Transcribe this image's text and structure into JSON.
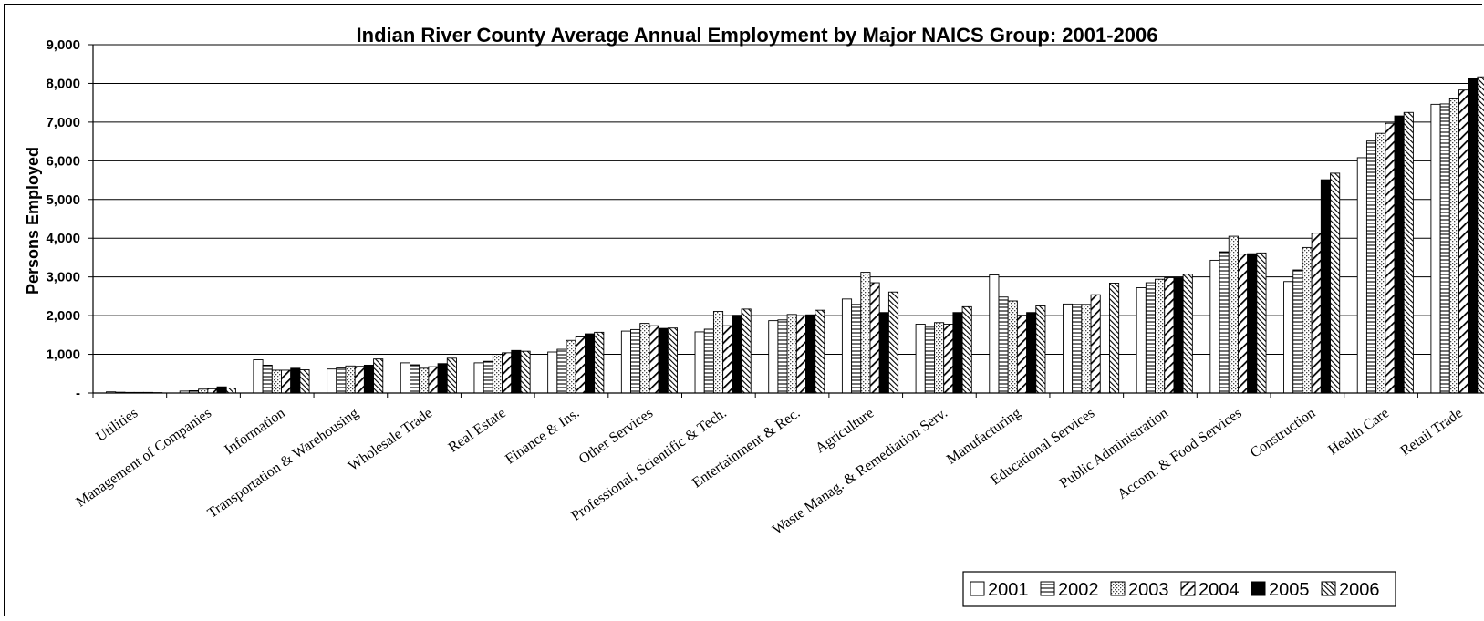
{
  "chart_data": {
    "type": "bar",
    "title": "Indian River County Average Annual Employment by Major NAICS Group: 2001-2006",
    "xlabel": "",
    "ylabel": "Persons Employed",
    "ylim": [
      0,
      9000
    ],
    "yticks": [
      0,
      1000,
      2000,
      3000,
      4000,
      5000,
      6000,
      7000,
      8000,
      9000
    ],
    "ytick_labels": [
      "-",
      "1,000",
      "2,000",
      "3,000",
      "4,000",
      "5,000",
      "6,000",
      "7,000",
      "8,000",
      "9,000"
    ],
    "grid": true,
    "legend_position": "bottom-right",
    "categories": [
      "Utilities",
      "Management of Companies",
      "Information",
      "Transportation & Warehousing",
      "Wholesale Trade",
      "Real Estate",
      "Finance & Ins.",
      "Other Services",
      "Professional, Scientific & Tech.",
      "Entertainment & Rec.",
      "Agriculture",
      "Waste Manag. & Remediation Serv.",
      "Manufacturing",
      "Educational Services",
      "Public Administration",
      "Accom. & Food Services",
      "Construction",
      "Health Care",
      "Retail Trade"
    ],
    "series": [
      {
        "name": "2001",
        "pattern": "open",
        "values": [
          30,
          50,
          860,
          620,
          780,
          780,
          1060,
          1600,
          1580,
          1870,
          2430,
          1780,
          3050,
          2300,
          2720,
          3430,
          2880,
          6080,
          7460
        ]
      },
      {
        "name": "2002",
        "pattern": "hlines",
        "values": [
          20,
          60,
          720,
          650,
          730,
          820,
          1130,
          1640,
          1650,
          1890,
          2290,
          1700,
          2480,
          2290,
          2850,
          3650,
          3180,
          6510,
          7470
        ]
      },
      {
        "name": "2003",
        "pattern": "dotted",
        "values": [
          15,
          100,
          590,
          700,
          640,
          1000,
          1360,
          1800,
          2110,
          2030,
          3120,
          1820,
          2380,
          2290,
          2940,
          4050,
          3760,
          6710,
          7600
        ]
      },
      {
        "name": "2004",
        "pattern": "diagonal",
        "values": [
          15,
          110,
          590,
          690,
          680,
          1040,
          1450,
          1740,
          1740,
          1990,
          2850,
          1780,
          2010,
          2540,
          2980,
          3590,
          4130,
          6970,
          7830
        ]
      },
      {
        "name": "2005",
        "pattern": "solid",
        "values": [
          15,
          160,
          640,
          720,
          760,
          1100,
          1530,
          1670,
          2010,
          2020,
          2080,
          2080,
          2080,
          0,
          2980,
          3600,
          5510,
          7160,
          8140
        ]
      },
      {
        "name": "2006",
        "pattern": "diagdense",
        "values": [
          10,
          130,
          600,
          880,
          900,
          1080,
          1570,
          1680,
          2170,
          2140,
          2610,
          2230,
          2250,
          2840,
          3070,
          3620,
          5680,
          7250,
          8170
        ]
      }
    ]
  }
}
